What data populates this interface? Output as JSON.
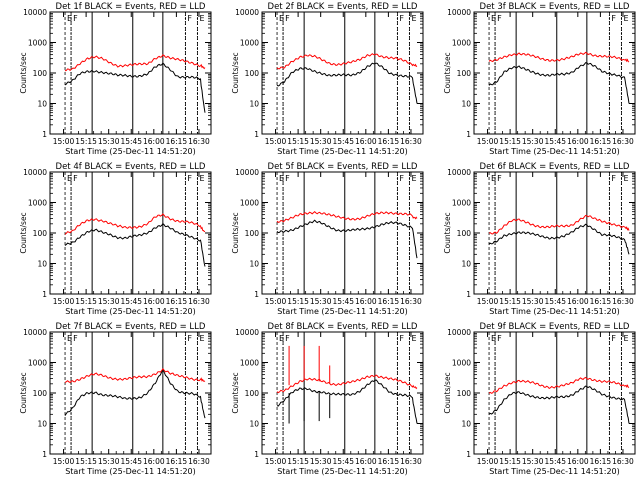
{
  "figure": {
    "x_ticks": [
      "15:00",
      "15:15",
      "15:30",
      "15:45",
      "16:00",
      "16:15",
      "16:30"
    ],
    "y_ticks": [
      "1",
      "10",
      "100",
      "1000",
      "10000"
    ],
    "xlabel": "Start Time (25-Dec-11 14:51:20)",
    "ylabel": "Counts/sec",
    "event_labels": [
      "E",
      "F",
      "F",
      "E"
    ],
    "colors": {
      "events": "#000000",
      "lld": "#ff0000",
      "axes": "#000000",
      "background": "#ffffff"
    }
  },
  "chart_data": [
    {
      "type": "line",
      "title": "Det 1f BLACK = Events, RED = LLD",
      "xlabel": "Start Time (25-Dec-11 14:51:20)",
      "ylabel": "Counts/sec",
      "y_scale": "log",
      "ylim": [
        1,
        10000
      ],
      "xlim_minutes_from_14_51_20": [
        0,
        107
      ],
      "x": [
        10,
        15,
        20,
        25,
        30,
        35,
        40,
        45,
        50,
        55,
        60,
        65,
        70,
        75,
        80,
        85,
        90,
        95,
        100,
        103
      ],
      "series": [
        {
          "name": "Events",
          "color": "#000000",
          "values": [
            45,
            55,
            90,
            110,
            120,
            110,
            95,
            80,
            80,
            80,
            85,
            95,
            150,
            190,
            130,
            80,
            75,
            70,
            60,
            5
          ]
        },
        {
          "name": "LLD",
          "color": "#ff0000",
          "values": [
            120,
            140,
            220,
            300,
            320,
            280,
            220,
            180,
            180,
            180,
            185,
            200,
            320,
            390,
            300,
            260,
            240,
            220,
            180,
            150
          ]
        }
      ],
      "vlines_dotted": [
        14,
        90,
        98
      ],
      "vlines_solid": [
        28,
        55,
        75
      ],
      "events_dashed": [
        {
          "x": 10,
          "label": "E"
        },
        {
          "x": 14,
          "label": "F"
        },
        {
          "x": 90,
          "label": "F"
        },
        {
          "x": 98,
          "label": "E"
        }
      ]
    },
    {
      "type": "line",
      "title": "Det 2f BLACK = Events, RED = LLD",
      "xlabel": "Start Time (25-Dec-11 14:51:20)",
      "ylabel": "Counts/sec",
      "y_scale": "log",
      "ylim": [
        1,
        10000
      ],
      "xlim_minutes_from_14_51_20": [
        0,
        107
      ],
      "x": [
        10,
        15,
        20,
        25,
        30,
        35,
        40,
        45,
        50,
        55,
        60,
        65,
        70,
        75,
        80,
        85,
        90,
        95,
        100,
        103
      ],
      "series": [
        {
          "name": "Events",
          "color": "#000000",
          "values": [
            40,
            55,
            100,
            130,
            140,
            120,
            100,
            80,
            80,
            85,
            90,
            110,
            160,
            200,
            150,
            100,
            90,
            80,
            70,
            10
          ]
        },
        {
          "name": "LLD",
          "color": "#ff0000",
          "values": [
            130,
            150,
            250,
            350,
            380,
            330,
            260,
            210,
            200,
            210,
            220,
            260,
            380,
            450,
            350,
            300,
            280,
            250,
            200,
            170
          ]
        }
      ],
      "vlines_dotted": [
        14,
        90,
        98
      ],
      "vlines_solid": [
        28,
        55,
        75
      ],
      "events_dashed": [
        {
          "x": 10,
          "label": "E"
        },
        {
          "x": 14,
          "label": "F"
        },
        {
          "x": 90,
          "label": "F"
        },
        {
          "x": 98,
          "label": "E"
        }
      ]
    },
    {
      "type": "line",
      "title": "Det 3f BLACK = Events, RED = LLD",
      "xlabel": "Start Time (25-Dec-11 14:51:20)",
      "ylabel": "Counts/sec",
      "y_scale": "log",
      "ylim": [
        1,
        10000
      ],
      "xlim_minutes_from_14_51_20": [
        0,
        107
      ],
      "x": [
        10,
        15,
        20,
        25,
        30,
        35,
        40,
        45,
        50,
        55,
        60,
        65,
        70,
        75,
        80,
        85,
        90,
        95,
        100,
        103
      ],
      "series": [
        {
          "name": "Events",
          "color": "#000000",
          "values": [
            40,
            55,
            110,
            140,
            150,
            130,
            110,
            90,
            80,
            85,
            90,
            110,
            170,
            210,
            160,
            110,
            100,
            90,
            70,
            10
          ]
        },
        {
          "name": "LLD",
          "color": "#ff0000",
          "values": [
            230,
            250,
            330,
            420,
            450,
            400,
            330,
            280,
            270,
            280,
            290,
            320,
            400,
            460,
            400,
            360,
            330,
            300,
            260,
            230
          ]
        }
      ],
      "vlines_dotted": [
        14,
        90,
        98
      ],
      "vlines_solid": [
        28,
        55,
        75
      ],
      "events_dashed": [
        {
          "x": 10,
          "label": "E"
        },
        {
          "x": 14,
          "label": "F"
        },
        {
          "x": 90,
          "label": "F"
        },
        {
          "x": 98,
          "label": "E"
        }
      ]
    },
    {
      "type": "line",
      "title": "Det 4f BLACK = Events, RED = LLD",
      "xlabel": "Start Time (25-Dec-11 14:51:20)",
      "ylabel": "Counts/sec",
      "y_scale": "log",
      "ylim": [
        1,
        10000
      ],
      "xlim_minutes_from_14_51_20": [
        0,
        107
      ],
      "x": [
        10,
        15,
        20,
        25,
        30,
        35,
        40,
        45,
        50,
        55,
        60,
        65,
        70,
        75,
        80,
        85,
        90,
        95,
        100,
        103
      ],
      "series": [
        {
          "name": "Events",
          "color": "#000000",
          "values": [
            40,
            50,
            80,
            110,
            120,
            100,
            90,
            75,
            70,
            75,
            80,
            100,
            160,
            200,
            140,
            95,
            85,
            75,
            60,
            8
          ]
        },
        {
          "name": "LLD",
          "color": "#ff0000",
          "values": [
            100,
            110,
            180,
            260,
            300,
            260,
            200,
            160,
            150,
            160,
            170,
            200,
            320,
            380,
            300,
            260,
            240,
            200,
            160,
            110
          ]
        }
      ],
      "vlines_dotted": [
        14,
        90,
        98
      ],
      "vlines_solid": [
        28,
        55,
        75
      ],
      "events_dashed": [
        {
          "x": 10,
          "label": "E"
        },
        {
          "x": 14,
          "label": "F"
        },
        {
          "x": 90,
          "label": "F"
        },
        {
          "x": 98,
          "label": "E"
        }
      ]
    },
    {
      "type": "line",
      "title": "Det 5f BLACK = Events, RED = LLD",
      "xlabel": "Start Time (25-Dec-11 14:51:20)",
      "ylabel": "Counts/sec",
      "y_scale": "log",
      "ylim": [
        1,
        10000
      ],
      "xlim_minutes_from_14_51_20": [
        0,
        107
      ],
      "x": [
        10,
        15,
        20,
        25,
        30,
        35,
        40,
        45,
        50,
        55,
        60,
        65,
        70,
        75,
        80,
        85,
        90,
        95,
        100,
        103
      ],
      "series": [
        {
          "name": "Events",
          "color": "#000000",
          "values": [
            100,
            110,
            130,
            170,
            200,
            230,
            200,
            160,
            130,
            120,
            120,
            125,
            140,
            170,
            200,
            210,
            200,
            180,
            160,
            15
          ]
        },
        {
          "name": "LLD",
          "color": "#ff0000",
          "values": [
            250,
            260,
            300,
            380,
            450,
            500,
            460,
            380,
            320,
            300,
            300,
            310,
            350,
            400,
            450,
            480,
            460,
            420,
            360,
            300
          ]
        }
      ],
      "vlines_dotted": [
        14,
        90,
        98
      ],
      "vlines_solid": [
        28,
        55,
        75
      ],
      "events_dashed": [
        {
          "x": 10,
          "label": "E"
        },
        {
          "x": 14,
          "label": "F"
        },
        {
          "x": 90,
          "label": "F"
        },
        {
          "x": 98,
          "label": "E"
        }
      ]
    },
    {
      "type": "line",
      "title": "Det 6f BLACK = Events, RED = LLD",
      "xlabel": "Start Time (25-Dec-11 14:51:20)",
      "ylabel": "Counts/sec",
      "y_scale": "log",
      "ylim": [
        1,
        10000
      ],
      "xlim_minutes_from_14_51_20": [
        0,
        107
      ],
      "x": [
        10,
        15,
        20,
        25,
        30,
        35,
        40,
        45,
        50,
        55,
        60,
        65,
        70,
        75,
        80,
        85,
        90,
        95,
        100,
        103
      ],
      "series": [
        {
          "name": "Events",
          "color": "#000000",
          "values": [
            40,
            50,
            80,
            100,
            110,
            100,
            85,
            75,
            70,
            75,
            80,
            100,
            150,
            190,
            140,
            90,
            80,
            70,
            60,
            20
          ]
        },
        {
          "name": "LLD",
          "color": "#ff0000",
          "values": [
            100,
            110,
            170,
            240,
            260,
            230,
            190,
            160,
            150,
            160,
            170,
            190,
            280,
            360,
            280,
            240,
            220,
            190,
            150,
            120
          ]
        }
      ],
      "vlines_dotted": [
        14,
        90,
        98
      ],
      "vlines_solid": [
        28,
        55,
        75
      ],
      "events_dashed": [
        {
          "x": 10,
          "label": "E"
        },
        {
          "x": 14,
          "label": "F"
        },
        {
          "x": 90,
          "label": "F"
        },
        {
          "x": 98,
          "label": "E"
        }
      ]
    },
    {
      "type": "line",
      "title": "Det 7f BLACK = Events, RED = LLD",
      "xlabel": "Start Time (25-Dec-11 14:51:20)",
      "ylabel": "Counts/sec",
      "y_scale": "log",
      "ylim": [
        1,
        10000
      ],
      "xlim_minutes_from_14_51_20": [
        0,
        107
      ],
      "x": [
        10,
        15,
        20,
        25,
        30,
        35,
        40,
        45,
        50,
        55,
        60,
        65,
        70,
        75,
        80,
        85,
        90,
        95,
        100,
        103
      ],
      "series": [
        {
          "name": "Events",
          "color": "#000000",
          "values": [
            20,
            30,
            70,
            100,
            110,
            90,
            80,
            70,
            65,
            70,
            75,
            100,
            200,
            550,
            220,
            120,
            100,
            90,
            70,
            15
          ]
        },
        {
          "name": "LLD",
          "color": "#ff0000",
          "values": [
            230,
            250,
            300,
            360,
            400,
            360,
            320,
            300,
            290,
            300,
            320,
            350,
            450,
            600,
            420,
            350,
            330,
            300,
            280,
            250
          ]
        }
      ],
      "vlines_dotted": [
        14,
        90,
        98
      ],
      "vlines_solid": [
        28,
        55,
        75
      ],
      "events_dashed": [
        {
          "x": 10,
          "label": "E"
        },
        {
          "x": 14,
          "label": "F"
        },
        {
          "x": 90,
          "label": "F"
        },
        {
          "x": 98,
          "label": "E"
        }
      ]
    },
    {
      "type": "line",
      "title": "Det 8f BLACK = Events, RED = LLD",
      "xlabel": "Start Time (25-Dec-11 14:51:20)",
      "ylabel": "Counts/sec",
      "y_scale": "log",
      "ylim": [
        1,
        10000
      ],
      "xlim_minutes_from_14_51_20": [
        0,
        107
      ],
      "x": [
        10,
        15,
        20,
        25,
        30,
        35,
        40,
        45,
        50,
        55,
        60,
        65,
        70,
        75,
        80,
        85,
        90,
        95,
        100,
        103
      ],
      "series": [
        {
          "name": "Events",
          "color": "#000000",
          "values": [
            40,
            60,
            100,
            130,
            140,
            120,
            110,
            90,
            85,
            90,
            95,
            120,
            180,
            250,
            170,
            110,
            95,
            85,
            70,
            10
          ]
        },
        {
          "name": "LLD",
          "color": "#ff0000",
          "values": [
            100,
            120,
            180,
            250,
            280,
            260,
            240,
            210,
            200,
            210,
            220,
            260,
            350,
            400,
            330,
            280,
            250,
            220,
            180,
            150
          ]
        }
      ],
      "spikes": [
        {
          "x": 18,
          "events": 10,
          "lld": 3500
        },
        {
          "x": 28,
          "events": 12,
          "lld": 3500
        },
        {
          "x": 38,
          "events": 12,
          "lld": 3500
        },
        {
          "x": 45,
          "events": 15,
          "lld": 800
        }
      ],
      "vlines_dotted": [
        14,
        90,
        98
      ],
      "vlines_solid": [
        28,
        55,
        75
      ],
      "events_dashed": [
        {
          "x": 10,
          "label": "E"
        },
        {
          "x": 14,
          "label": "F"
        },
        {
          "x": 90,
          "label": "F"
        },
        {
          "x": 98,
          "label": "E"
        }
      ]
    },
    {
      "type": "line",
      "title": "Det 9f BLACK = Events, RED = LLD",
      "xlabel": "Start Time (25-Dec-11 14:51:20)",
      "ylabel": "Counts/sec",
      "y_scale": "log",
      "ylim": [
        1,
        10000
      ],
      "xlim_minutes_from_14_51_20": [
        0,
        107
      ],
      "x": [
        10,
        15,
        20,
        25,
        30,
        35,
        40,
        45,
        50,
        55,
        60,
        65,
        70,
        75,
        80,
        85,
        90,
        95,
        100,
        103
      ],
      "series": [
        {
          "name": "Events",
          "color": "#000000",
          "values": [
            20,
            30,
            60,
            90,
            100,
            90,
            80,
            70,
            65,
            70,
            75,
            90,
            130,
            160,
            120,
            90,
            80,
            70,
            60,
            10
          ]
        },
        {
          "name": "LLD",
          "color": "#ff0000",
          "values": [
            90,
            110,
            170,
            230,
            260,
            230,
            200,
            170,
            160,
            170,
            180,
            200,
            280,
            320,
            280,
            240,
            220,
            200,
            170,
            150
          ]
        }
      ],
      "vlines_dotted": [
        14,
        90,
        98
      ],
      "vlines_solid": [
        28,
        55,
        75
      ],
      "events_dashed": [
        {
          "x": 10,
          "label": "E"
        },
        {
          "x": 14,
          "label": "F"
        },
        {
          "x": 90,
          "label": "F"
        },
        {
          "x": 98,
          "label": "E"
        }
      ]
    }
  ]
}
